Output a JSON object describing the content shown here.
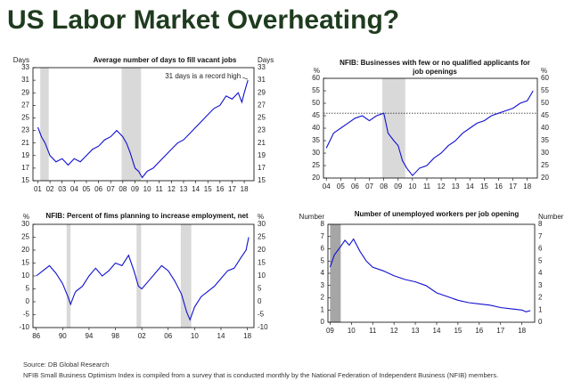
{
  "page_title": "US Labor Market Overheating?",
  "source": "Source: DB Global Research",
  "note": "NFIB Small Business Optimism Index is compiled from a survey that is conducted monthly by the National Federation of Independent Business (NFIB) members.",
  "chart_data": [
    {
      "type": "line",
      "title": "Average number of days to fill vacant jobs",
      "y_label": "Days",
      "y2_label": "Days",
      "annotation": "31 days is a record high",
      "color": "#1010d0",
      "shade_color": "#d9d9d9",
      "shaded": [
        [
          2001.2,
          2001.9
        ],
        [
          2007.9,
          2009.5
        ]
      ],
      "x": [
        2001,
        2001.3,
        2001.6,
        2002,
        2002.5,
        2003,
        2003.5,
        2004,
        2004.5,
        2005,
        2005.5,
        2006,
        2006.5,
        2007,
        2007.5,
        2008,
        2008.3,
        2008.6,
        2009,
        2009.3,
        2009.6,
        2010,
        2010.5,
        2011,
        2011.5,
        2012,
        2012.5,
        2013,
        2013.5,
        2014,
        2014.5,
        2015,
        2015.5,
        2016,
        2016.5,
        2017,
        2017.5,
        2017.8,
        2018,
        2018.3
      ],
      "values": [
        23.5,
        22,
        21,
        19,
        18,
        18.5,
        17.5,
        18.5,
        18,
        19,
        20,
        20.5,
        21.5,
        22,
        23,
        22,
        21,
        19.5,
        17,
        16.5,
        15.5,
        16.5,
        17,
        18,
        19,
        20,
        21,
        21.5,
        22.5,
        23.5,
        24.5,
        25.5,
        26.5,
        27,
        28.5,
        28,
        29,
        27.5,
        29,
        31
      ],
      "xlim": [
        2000.6,
        2018.8
      ],
      "xticks": [
        {
          "value": 2001,
          "label": "01"
        },
        {
          "value": 2002,
          "label": "02"
        },
        {
          "value": 2003,
          "label": "03"
        },
        {
          "value": 2004,
          "label": "04"
        },
        {
          "value": 2005,
          "label": "05"
        },
        {
          "value": 2006,
          "label": "06"
        },
        {
          "value": 2007,
          "label": "07"
        },
        {
          "value": 2008,
          "label": "08"
        },
        {
          "value": 2009,
          "label": "09"
        },
        {
          "value": 2010,
          "label": "10"
        },
        {
          "value": 2011,
          "label": "11"
        },
        {
          "value": 2012,
          "label": "12"
        },
        {
          "value": 2013,
          "label": "13"
        },
        {
          "value": 2014,
          "label": "14"
        },
        {
          "value": 2015,
          "label": "15"
        },
        {
          "value": 2016,
          "label": "16"
        },
        {
          "value": 2017,
          "label": "17"
        },
        {
          "value": 2018,
          "label": "18"
        }
      ],
      "ylim": [
        15,
        33
      ],
      "yticks": [
        15,
        17,
        19,
        21,
        23,
        25,
        27,
        29,
        31,
        33
      ]
    },
    {
      "type": "line",
      "title": "NFIB: Businesses with few or no qualified applicants for job openings",
      "y_label": "%",
      "y2_label": "%",
      "color": "#1010d0",
      "shade_color": "#d9d9d9",
      "ref_line": 46,
      "shaded": [
        [
          2007.9,
          2009.5
        ]
      ],
      "x": [
        2004,
        2004.5,
        2005,
        2005.5,
        2006,
        2006.5,
        2007,
        2007.5,
        2008,
        2008.3,
        2008.7,
        2009,
        2009.3,
        2009.6,
        2010,
        2010.5,
        2011,
        2011.5,
        2012,
        2012.5,
        2013,
        2013.5,
        2014,
        2014.5,
        2015,
        2015.5,
        2016,
        2016.5,
        2017,
        2017.5,
        2018,
        2018.4
      ],
      "values": [
        32,
        38,
        40,
        42,
        44,
        45,
        43,
        45,
        46,
        38,
        35,
        33,
        27,
        24,
        21,
        24,
        25,
        28,
        30,
        33,
        35,
        38,
        40,
        42,
        43,
        45,
        46,
        47,
        48,
        50,
        51,
        55
      ],
      "xlim": [
        2003.8,
        2018.7
      ],
      "xticks": [
        {
          "value": 2004,
          "label": "04"
        },
        {
          "value": 2005,
          "label": "05"
        },
        {
          "value": 2006,
          "label": "06"
        },
        {
          "value": 2007,
          "label": "07"
        },
        {
          "value": 2008,
          "label": "08"
        },
        {
          "value": 2009,
          "label": "09"
        },
        {
          "value": 2010,
          "label": "10"
        },
        {
          "value": 2011,
          "label": "11"
        },
        {
          "value": 2012,
          "label": "12"
        },
        {
          "value": 2013,
          "label": "13"
        },
        {
          "value": 2014,
          "label": "14"
        },
        {
          "value": 2015,
          "label": "15"
        },
        {
          "value": 2016,
          "label": "16"
        },
        {
          "value": 2017,
          "label": "17"
        },
        {
          "value": 2018,
          "label": "18"
        }
      ],
      "ylim": [
        20,
        60
      ],
      "yticks": [
        20,
        25,
        30,
        35,
        40,
        45,
        50,
        55,
        60
      ]
    },
    {
      "type": "line",
      "title": "NFIB: Percent of fims planning to increase employment, net",
      "y_label": "%",
      "y2_label": "%",
      "color": "#1010d0",
      "shade_color": "#d9d9d9",
      "shaded": [
        [
          1990.6,
          1991.2
        ],
        [
          2001.2,
          2001.9
        ],
        [
          2007.9,
          2009.5
        ]
      ],
      "x": [
        1986,
        1987,
        1988,
        1989,
        1990,
        1990.8,
        1991.2,
        1991.8,
        1992,
        1993,
        1994,
        1995,
        1996,
        1997,
        1998,
        1999,
        2000,
        2000.8,
        2001.5,
        2002,
        2003,
        2004,
        2005,
        2006,
        2007,
        2008,
        2008.8,
        2009.3,
        2010,
        2011,
        2012,
        2013,
        2014,
        2015,
        2016,
        2017,
        2017.8,
        2018.2
      ],
      "values": [
        10,
        12,
        14,
        11,
        7,
        2,
        -1,
        3,
        4,
        6,
        10,
        13,
        10,
        12,
        15,
        14,
        18,
        12,
        6,
        5,
        8,
        11,
        14,
        12,
        8,
        3,
        -4,
        -7,
        -2,
        2,
        4,
        6,
        9,
        12,
        13,
        17,
        20,
        25
      ],
      "xlim": [
        1985.5,
        2019
      ],
      "xticks": [
        {
          "value": 1986,
          "label": "86"
        },
        {
          "value": 1990,
          "label": "90"
        },
        {
          "value": 1994,
          "label": "94"
        },
        {
          "value": 1998,
          "label": "98"
        },
        {
          "value": 2002,
          "label": "02"
        },
        {
          "value": 2006,
          "label": "06"
        },
        {
          "value": 2010,
          "label": "10"
        },
        {
          "value": 2014,
          "label": "14"
        },
        {
          "value": 2018,
          "label": "18"
        }
      ],
      "ylim": [
        -10,
        30
      ],
      "yticks": [
        -10,
        -5,
        0,
        5,
        10,
        15,
        20,
        25,
        30
      ]
    },
    {
      "type": "line",
      "title": "Number of unemployed workers per job opening",
      "y_label": "Number",
      "y2_label": "Number",
      "color": "#1010d0",
      "shade_color": "#a6a6a6",
      "shaded": [
        [
          2009,
          2009.5
        ]
      ],
      "x": [
        2009,
        2009.2,
        2009.5,
        2009.7,
        2009.9,
        2010.1,
        2010.4,
        2010.7,
        2011,
        2011.5,
        2012,
        2012.5,
        2013,
        2013.5,
        2014,
        2014.5,
        2015,
        2015.5,
        2016,
        2016.5,
        2017,
        2017.5,
        2018,
        2018.2,
        2018.4
      ],
      "values": [
        4.5,
        5.5,
        6.2,
        6.7,
        6.3,
        6.8,
        5.8,
        5.0,
        4.5,
        4.2,
        3.8,
        3.5,
        3.3,
        3.0,
        2.4,
        2.1,
        1.8,
        1.6,
        1.5,
        1.4,
        1.2,
        1.1,
        1.0,
        0.85,
        0.95
      ],
      "xlim": [
        2008.9,
        2018.6
      ],
      "xticks": [
        {
          "value": 2009,
          "label": "09"
        },
        {
          "value": 2010,
          "label": "10"
        },
        {
          "value": 2011,
          "label": "11"
        },
        {
          "value": 2012,
          "label": "12"
        },
        {
          "value": 2013,
          "label": "13"
        },
        {
          "value": 2014,
          "label": "14"
        },
        {
          "value": 2015,
          "label": "15"
        },
        {
          "value": 2016,
          "label": "16"
        },
        {
          "value": 2017,
          "label": "17"
        },
        {
          "value": 2018,
          "label": "18"
        }
      ],
      "ylim": [
        0,
        8
      ],
      "yticks": [
        0,
        1,
        2,
        3,
        4,
        5,
        6,
        7,
        8
      ]
    }
  ]
}
